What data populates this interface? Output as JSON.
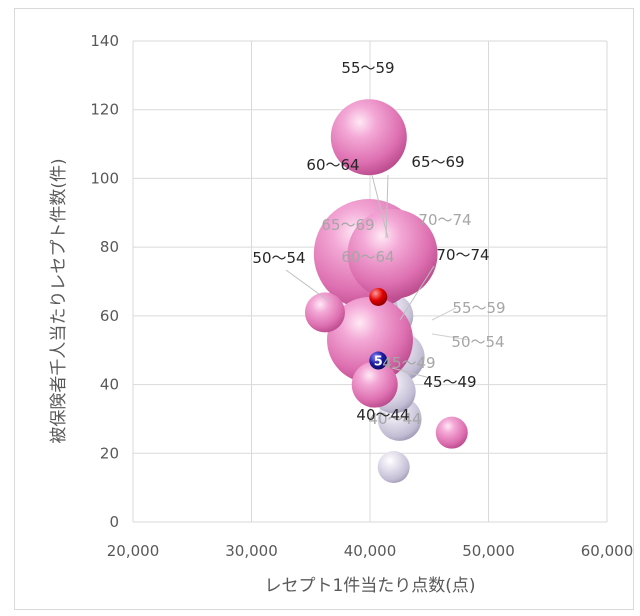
{
  "chart_data": {
    "type": "bubble",
    "title": "",
    "xlabel": "レセプト1件当たり点数(点)",
    "ylabel": "被保険者千人当たりレセプト件数(件)",
    "xlim": [
      20000,
      60000
    ],
    "ylim": [
      0,
      140
    ],
    "x_ticks": [
      "20,000",
      "30,000",
      "40,000",
      "50,000",
      "60,000"
    ],
    "y_ticks": [
      "0",
      "20",
      "40",
      "60",
      "80",
      "100",
      "120",
      "140"
    ],
    "grid": true,
    "colors": {
      "pink_bubble": "#e07ab8",
      "gray_bubble": "#c9c3d8",
      "red_marker": "#e00000",
      "blue_marker": "#1a1aa0",
      "label_dark": "#262626",
      "label_gray": "#a6a6a6"
    },
    "series": [
      {
        "color": "pink",
        "points": [
          {
            "label": "40〜44",
            "x": 46900,
            "y": 26
          },
          {
            "label": "45〜49",
            "x": 40400,
            "y": 40
          },
          {
            "label": "50〜54",
            "x": 36200,
            "y": 61
          },
          {
            "label": "55〜59",
            "x": 39900,
            "y": 112
          },
          {
            "label": "60〜64",
            "x": 39900,
            "y": 78
          },
          {
            "label": "65〜69",
            "x": 41900,
            "y": 78
          },
          {
            "label": "70〜74",
            "x": 40000,
            "y": 53
          }
        ]
      },
      {
        "color": "gray",
        "points": [
          {
            "label": "40〜44",
            "x": 42000,
            "y": 16
          },
          {
            "label": "45〜49",
            "x": 42500,
            "y": 30
          },
          {
            "label": "50〜54",
            "x": 42000,
            "y": 38
          },
          {
            "label": "55〜59",
            "x": 42500,
            "y": 48
          },
          {
            "label": "60〜64",
            "x": 41800,
            "y": 60
          },
          {
            "label": "65〜69",
            "x": 40500,
            "y": 62
          },
          {
            "label": "70〜74",
            "x": 41400,
            "y": 78
          }
        ]
      }
    ],
    "markers": [
      {
        "x": 40700,
        "y": 65.5,
        "color": "red",
        "text": ""
      },
      {
        "x": 40700,
        "y": 47,
        "color": "blue",
        "text": "5"
      }
    ]
  }
}
